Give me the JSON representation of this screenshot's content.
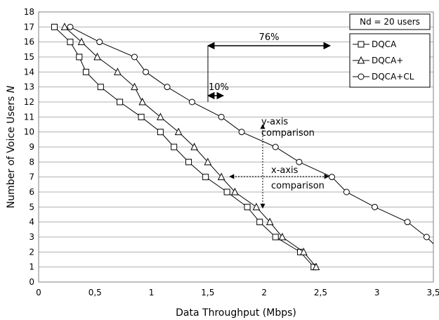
{
  "chart_data": {
    "type": "line",
    "xlabel": "Data Throughput (Mbps)",
    "ylabel_main": "Number of Voice Users ",
    "ylabel_italic": "N",
    "xlim": [
      0,
      3.5
    ],
    "ylim": [
      0,
      18
    ],
    "x_ticks": [
      "0",
      "0,5",
      "1",
      "1,5",
      "2",
      "2,5",
      "3",
      "3,5"
    ],
    "x_tick_values": [
      0,
      0.5,
      1,
      1.5,
      2,
      2.5,
      3,
      3.5
    ],
    "y_ticks": [
      "0",
      "1",
      "2",
      "3",
      "4",
      "5",
      "6",
      "7",
      "8",
      "9",
      "10",
      "11",
      "12",
      "13",
      "14",
      "15",
      "16",
      "17",
      "18"
    ],
    "grid": "horizontal",
    "legend_position": "right",
    "legend_box_text": "Nd = 20 users",
    "series": [
      {
        "name": "DQCA",
        "marker": "square",
        "points": [
          [
            0.14,
            17
          ],
          [
            0.28,
            16
          ],
          [
            0.36,
            15
          ],
          [
            0.42,
            14
          ],
          [
            0.55,
            13
          ],
          [
            0.72,
            12
          ],
          [
            0.91,
            11
          ],
          [
            1.08,
            10
          ],
          [
            1.2,
            9
          ],
          [
            1.33,
            8
          ],
          [
            1.48,
            7
          ],
          [
            1.67,
            6
          ],
          [
            1.85,
            5
          ],
          [
            1.96,
            4
          ],
          [
            2.1,
            3
          ],
          [
            2.32,
            2
          ],
          [
            2.44,
            1
          ]
        ]
      },
      {
        "name": "DQCA+",
        "marker": "triangle",
        "points": [
          [
            0.23,
            17
          ],
          [
            0.38,
            16
          ],
          [
            0.52,
            15
          ],
          [
            0.7,
            14
          ],
          [
            0.85,
            13
          ],
          [
            0.92,
            12
          ],
          [
            1.08,
            11
          ],
          [
            1.24,
            10
          ],
          [
            1.38,
            9
          ],
          [
            1.5,
            8
          ],
          [
            1.62,
            7
          ],
          [
            1.74,
            6
          ],
          [
            1.93,
            5
          ],
          [
            2.05,
            4
          ],
          [
            2.16,
            3
          ],
          [
            2.35,
            2
          ],
          [
            2.46,
            1
          ]
        ]
      },
      {
        "name": "DQCA+CL",
        "marker": "circle",
        "points": [
          [
            0.28,
            17
          ],
          [
            0.54,
            16
          ],
          [
            0.85,
            15
          ],
          [
            0.95,
            14
          ],
          [
            1.14,
            13
          ],
          [
            1.36,
            12
          ],
          [
            1.62,
            11
          ],
          [
            1.8,
            10
          ],
          [
            2.1,
            9
          ],
          [
            2.31,
            8
          ],
          [
            2.6,
            7
          ],
          [
            2.73,
            6
          ],
          [
            2.98,
            5
          ],
          [
            3.27,
            4
          ],
          [
            3.44,
            3
          ],
          [
            3.55,
            2.55
          ]
        ]
      }
    ],
    "annotations": {
      "pct76": "76%",
      "pct10": "10%",
      "yaxis_line1": "y-axis",
      "yaxis_line2": "comparison",
      "xaxis_line1": "x-axis",
      "xaxis_line2": "comparison"
    }
  }
}
